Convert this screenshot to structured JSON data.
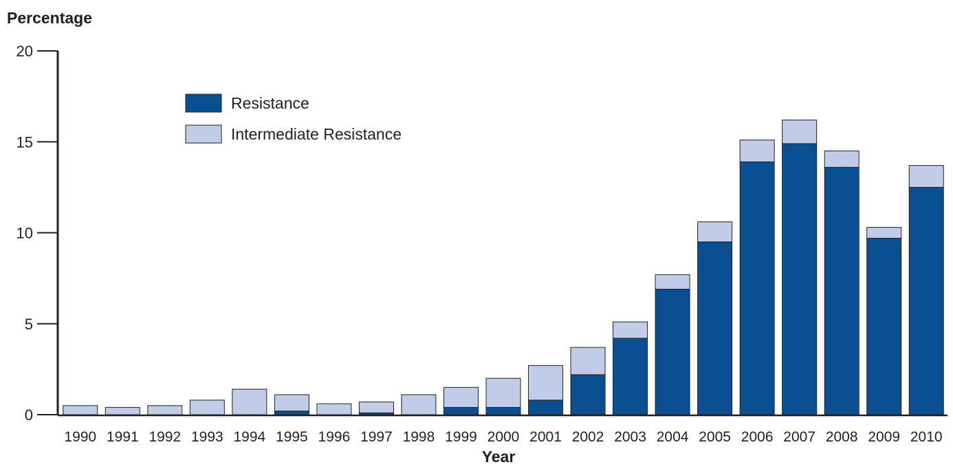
{
  "chart_data": {
    "type": "bar",
    "stacked": true,
    "ylabel": "Percentage",
    "xlabel": "Year",
    "ylim": [
      0,
      20
    ],
    "yticks": [
      "0",
      "5",
      "10",
      "15",
      "20"
    ],
    "categories": [
      "1990",
      "1991",
      "1992",
      "1993",
      "1994",
      "1995",
      "1996",
      "1997",
      "1998",
      "1999",
      "2000",
      "2001",
      "2002",
      "2003",
      "2004",
      "2005",
      "2006",
      "2007",
      "2008",
      "2009",
      "2010"
    ],
    "series": [
      {
        "name": "Resistance",
        "color": "#0b4f93",
        "pattern": "solid",
        "values": [
          0.0,
          0.0,
          0.0,
          0.0,
          0.0,
          0.2,
          0.0,
          0.1,
          0.0,
          0.4,
          0.4,
          0.8,
          2.2,
          4.2,
          6.9,
          9.5,
          13.9,
          14.9,
          13.6,
          9.7,
          12.5
        ]
      },
      {
        "name": "Intermediate Resistance",
        "color": "#c9d4ec",
        "pattern": "dotted",
        "values": [
          0.5,
          0.4,
          0.5,
          0.8,
          1.4,
          0.9,
          0.6,
          0.6,
          1.1,
          1.1,
          1.6,
          1.9,
          1.5,
          0.9,
          0.8,
          1.1,
          1.2,
          1.3,
          0.9,
          0.6,
          1.2
        ]
      }
    ],
    "legend": "upper-left inside plot",
    "grid": false
  }
}
